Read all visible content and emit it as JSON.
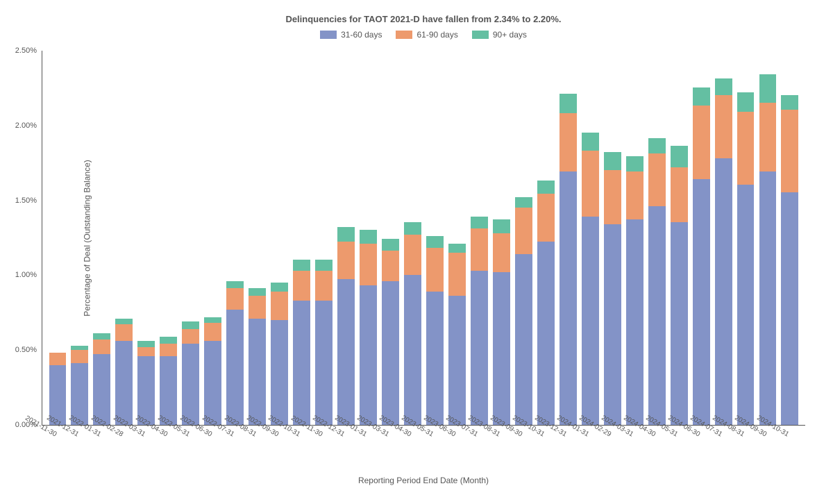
{
  "chart": {
    "type": "stacked-bar",
    "title": "Delinquencies for TAOT 2021-D have fallen from 2.34% to 2.20%.",
    "title_fontsize": 13,
    "xlabel": "Reporting Period End Date (Month)",
    "ylabel": "Percentage of Deal (Outstanding Balance)",
    "label_fontsize": 12,
    "tick_fontsize": 10,
    "background_color": "#ffffff",
    "axis_color": "#555555",
    "text_color": "#555555",
    "ylim": [
      0,
      2.5
    ],
    "ytick_step": 0.5,
    "yticks": [
      "0.00%",
      "0.50%",
      "1.00%",
      "1.50%",
      "2.00%",
      "2.50%"
    ],
    "bar_width": 0.78,
    "legend_position": "top-center",
    "series": [
      {
        "name": "31-60 days",
        "color": "#8393c7"
      },
      {
        "name": "61-90 days",
        "color": "#ed9a6d"
      },
      {
        "name": "90+ days",
        "color": "#64bfa2"
      }
    ],
    "categories": [
      "2021-11-30",
      "2021-12-31",
      "2022-01-31",
      "2022-02-28",
      "2022-03-31",
      "2022-04-30",
      "2022-05-31",
      "2022-06-30",
      "2022-07-31",
      "2022-08-31",
      "2022-09-30",
      "2022-10-31",
      "2022-11-30",
      "2022-12-31",
      "2023-01-31",
      "2023-03-31",
      "2023-04-30",
      "2023-05-31",
      "2023-06-30",
      "2023-07-31",
      "2023-08-31",
      "2023-09-30",
      "2023-10-31",
      "2023-12-31",
      "2024-01-31",
      "2024-02-29",
      "2024-03-31",
      "2024-04-30",
      "2024-05-31",
      "2024-06-30",
      "2024-07-31",
      "2024-08-31",
      "2024-09-30",
      "2024-10-31"
    ],
    "data": [
      {
        "a": 0.4,
        "b": 0.08,
        "c": 0.0
      },
      {
        "a": 0.41,
        "b": 0.09,
        "c": 0.03
      },
      {
        "a": 0.47,
        "b": 0.1,
        "c": 0.04
      },
      {
        "a": 0.56,
        "b": 0.11,
        "c": 0.04
      },
      {
        "a": 0.46,
        "b": 0.06,
        "c": 0.04
      },
      {
        "a": 0.46,
        "b": 0.08,
        "c": 0.05
      },
      {
        "a": 0.54,
        "b": 0.1,
        "c": 0.05
      },
      {
        "a": 0.56,
        "b": 0.12,
        "c": 0.04
      },
      {
        "a": 0.77,
        "b": 0.14,
        "c": 0.05
      },
      {
        "a": 0.71,
        "b": 0.15,
        "c": 0.05
      },
      {
        "a": 0.7,
        "b": 0.19,
        "c": 0.06
      },
      {
        "a": 0.83,
        "b": 0.2,
        "c": 0.07
      },
      {
        "a": 0.83,
        "b": 0.2,
        "c": 0.07
      },
      {
        "a": 0.97,
        "b": 0.25,
        "c": 0.1
      },
      {
        "a": 0.93,
        "b": 0.28,
        "c": 0.09
      },
      {
        "a": 0.96,
        "b": 0.2,
        "c": 0.08
      },
      {
        "a": 1.0,
        "b": 0.27,
        "c": 0.08
      },
      {
        "a": 0.89,
        "b": 0.29,
        "c": 0.08
      },
      {
        "a": 0.86,
        "b": 0.29,
        "c": 0.06
      },
      {
        "a": 1.03,
        "b": 0.28,
        "c": 0.08
      },
      {
        "a": 1.02,
        "b": 0.26,
        "c": 0.09
      },
      {
        "a": 1.14,
        "b": 0.31,
        "c": 0.07
      },
      {
        "a": 1.22,
        "b": 0.32,
        "c": 0.09
      },
      {
        "a": 1.69,
        "b": 0.39,
        "c": 0.13
      },
      {
        "a": 1.39,
        "b": 0.44,
        "c": 0.12
      },
      {
        "a": 1.34,
        "b": 0.36,
        "c": 0.12
      },
      {
        "a": 1.37,
        "b": 0.32,
        "c": 0.1
      },
      {
        "a": 1.46,
        "b": 0.35,
        "c": 0.1
      },
      {
        "a": 1.35,
        "b": 0.37,
        "c": 0.14
      },
      {
        "a": 1.64,
        "b": 0.49,
        "c": 0.12
      },
      {
        "a": 1.78,
        "b": 0.42,
        "c": 0.11
      },
      {
        "a": 1.6,
        "b": 0.49,
        "c": 0.13
      },
      {
        "a": 1.69,
        "b": 0.46,
        "c": 0.19
      },
      {
        "a": 1.55,
        "b": 0.55,
        "c": 0.1
      }
    ]
  }
}
